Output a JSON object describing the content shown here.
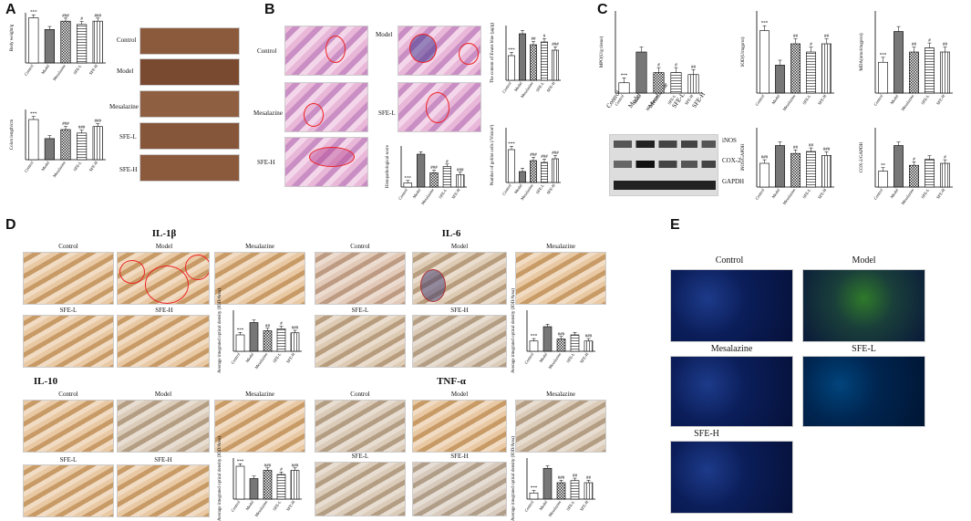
{
  "panels": {
    "A": {
      "label": "A",
      "photo_labels": [
        "Control",
        "Model",
        "Mesalazine",
        "SFE-L",
        "SFE-H"
      ],
      "charts": [
        {
          "ylabel": "Body weight/g",
          "sig": [
            "***",
            "",
            "###",
            "#",
            "###"
          ]
        },
        {
          "ylabel": "Colon length/cm",
          "sig": [
            "***",
            "",
            "###",
            "###",
            "###"
          ]
        }
      ]
    },
    "B": {
      "label": "B",
      "image_labels": [
        "Control",
        "Model",
        "Mesalazine",
        "SFE-L",
        "SFE-H"
      ],
      "charts": [
        {
          "ylabel": "The content of Evans blue (μg/g)",
          "sig": [
            "***",
            "",
            "##",
            "#",
            "###"
          ]
        },
        {
          "ylabel": "Histopathological score",
          "sig": [
            "***",
            "",
            "###",
            "#",
            "###"
          ]
        },
        {
          "ylabel": "Number of goblet cells (/Vision²)",
          "sig": [
            "***",
            "",
            "###",
            "###",
            "###"
          ]
        }
      ]
    },
    "C": {
      "label": "C",
      "charts_top": [
        {
          "ylabel": "MPO(U/g tissue)",
          "sig": [
            "***",
            "",
            "#",
            "#",
            "##"
          ]
        },
        {
          "ylabel": "SOD(U/mgprot)",
          "sig": [
            "***",
            "",
            "##",
            "#",
            "##"
          ]
        },
        {
          "ylabel": "MDA(nmol/mgprot)",
          "sig": [
            "***",
            "",
            "##",
            "#",
            "##"
          ]
        }
      ],
      "blot_lanes": [
        "Control",
        "Model",
        "Mesalazine",
        "SFE-L",
        "SFE-H"
      ],
      "blot_bands": [
        "iNOS",
        "COX-2",
        "GAPDH"
      ],
      "charts_bottom": [
        {
          "ylabel": "iNOS/GAPDH",
          "sig": [
            "###",
            "",
            "##",
            "##",
            "###"
          ]
        },
        {
          "ylabel": "COX-2/GAPDH",
          "sig": [
            "**",
            "",
            "#",
            "",
            "#"
          ]
        }
      ]
    },
    "D": {
      "label": "D",
      "stains": [
        {
          "title": "IL-1β",
          "labels": [
            "Control",
            "Model",
            "Mesalazine",
            "SFE-L",
            "SFE-H"
          ],
          "sig": [
            "***",
            "",
            "##",
            "#",
            "###"
          ]
        },
        {
          "title": "IL-6",
          "labels": [
            "Control",
            "Model",
            "Mesalazine",
            "SFE-L",
            "SFE-H"
          ],
          "sig": [
            "***",
            "",
            "###",
            "",
            "###"
          ]
        },
        {
          "title": "IL-10",
          "labels": [
            "Control",
            "Model",
            "Mesalazine",
            "SFE-L",
            "SFE-H"
          ],
          "sig": [
            "***",
            "",
            "###",
            "#",
            "###"
          ]
        },
        {
          "title": "TNF-α",
          "labels": [
            "Control",
            "Model",
            "Mesalazine",
            "SFE-L",
            "SFE-H"
          ],
          "sig": [
            "***",
            "",
            "###",
            "##",
            "##"
          ]
        }
      ],
      "chart_ylabel": "Average integrated optical density (IOD/Area)"
    },
    "E": {
      "label": "E",
      "labels": [
        "Control",
        "Model",
        "Mesalazine",
        "SFE-L",
        "SFE-H"
      ]
    }
  },
  "x_categories": [
    "Control",
    "Model",
    "Mesalazine",
    "SFE-L",
    "SFE-H"
  ],
  "chart_data": [
    {
      "type": "bar",
      "categories": [
        "Control",
        "Model",
        "Mesalazine",
        "SFE-L",
        "SFE-H"
      ],
      "values": [
        27,
        20,
        25,
        23,
        25
      ],
      "ylabel": "Body weight/g",
      "ylim": [
        0,
        30
      ]
    },
    {
      "type": "bar",
      "categories": [
        "Control",
        "Model",
        "Mesalazine",
        "SFE-L",
        "SFE-H"
      ],
      "values": [
        8,
        4.2,
        6,
        5.3,
        6.6
      ],
      "ylabel": "Colon length/cm",
      "ylim": [
        0,
        10
      ]
    },
    {
      "type": "bar",
      "categories": [
        "Control",
        "Model",
        "Mesalazine",
        "SFE-L",
        "SFE-H"
      ],
      "values": [
        18,
        34,
        26,
        28,
        22
      ],
      "ylabel": "The content of Evans blue (μg/g)",
      "ylim": [
        0,
        40
      ]
    },
    {
      "type": "bar",
      "categories": [
        "Control",
        "Model",
        "Mesalazine",
        "SFE-L",
        "SFE-H"
      ],
      "values": [
        1,
        8,
        3.5,
        5,
        3
      ],
      "ylabel": "Histopathological score",
      "ylim": [
        0,
        10
      ]
    },
    {
      "type": "bar",
      "categories": [
        "Control",
        "Model",
        "Mesalazine",
        "SFE-L",
        "SFE-H"
      ],
      "values": [
        90,
        30,
        60,
        55,
        65
      ],
      "ylabel": "Number of goblet cells (/Vision²)",
      "ylim": [
        0,
        150
      ]
    },
    {
      "type": "bar",
      "categories": [
        "Control",
        "Model",
        "Mesalazine",
        "SFE-L",
        "SFE-H"
      ],
      "values": [
        1,
        4,
        2,
        2,
        1.8
      ],
      "ylabel": "MPO(U/g tissue)",
      "ylim": [
        0,
        8
      ]
    },
    {
      "type": "bar",
      "categories": [
        "Control",
        "Model",
        "Mesalazine",
        "SFE-L",
        "SFE-H"
      ],
      "values": [
        380,
        170,
        300,
        250,
        300
      ],
      "ylabel": "SOD(U/mgprot)",
      "ylim": [
        0,
        500
      ]
    },
    {
      "type": "bar",
      "categories": [
        "Control",
        "Model",
        "Mesalazine",
        "SFE-L",
        "SFE-H"
      ],
      "values": [
        1.5,
        3,
        2,
        2.2,
        2
      ],
      "ylabel": "MDA(nmol/mgprot)",
      "ylim": [
        0,
        4
      ]
    },
    {
      "type": "bar",
      "categories": [
        "Control",
        "Model",
        "Mesalazine",
        "SFE-L",
        "SFE-H"
      ],
      "values": [
        0.6,
        1.05,
        0.85,
        0.9,
        0.8
      ],
      "ylabel": "iNOS/GAPDH",
      "ylim": [
        0,
        1.5
      ]
    },
    {
      "type": "bar",
      "categories": [
        "Control",
        "Model",
        "Mesalazine",
        "SFE-L",
        "SFE-H"
      ],
      "values": [
        0.4,
        1.05,
        0.55,
        0.7,
        0.6
      ],
      "ylabel": "COX-2/GAPDH",
      "ylim": [
        0,
        1.5
      ]
    },
    {
      "type": "bar",
      "categories": [
        "Control",
        "Model",
        "Mesalazine",
        "SFE-L",
        "SFE-H"
      ],
      "values": [
        0.08,
        0.14,
        0.1,
        0.11,
        0.09
      ],
      "ylabel": "Average integrated optical density (IOD/Area)",
      "ylim": [
        0,
        0.2
      ]
    },
    {
      "type": "bar",
      "categories": [
        "Control",
        "Model",
        "Mesalazine",
        "SFE-L",
        "SFE-H"
      ],
      "values": [
        0.05,
        0.12,
        0.06,
        0.08,
        0.05
      ],
      "ylabel": "Average integrated optical density (IOD/Area)",
      "ylim": [
        0,
        0.2
      ]
    },
    {
      "type": "bar",
      "categories": [
        "Control",
        "Model",
        "Mesalazine",
        "SFE-L",
        "SFE-H"
      ],
      "values": [
        0.16,
        0.1,
        0.14,
        0.12,
        0.14
      ],
      "ylabel": "Average integrated optical density (IOD/Area)",
      "ylim": [
        0,
        0.2
      ]
    },
    {
      "type": "bar",
      "categories": [
        "Control",
        "Model",
        "Mesalazine",
        "SFE-L",
        "SFE-H"
      ],
      "values": [
        0.03,
        0.15,
        0.08,
        0.09,
        0.08
      ],
      "ylabel": "Average integrated optical density (IOD/Area)",
      "ylim": [
        0,
        0.2
      ]
    }
  ]
}
